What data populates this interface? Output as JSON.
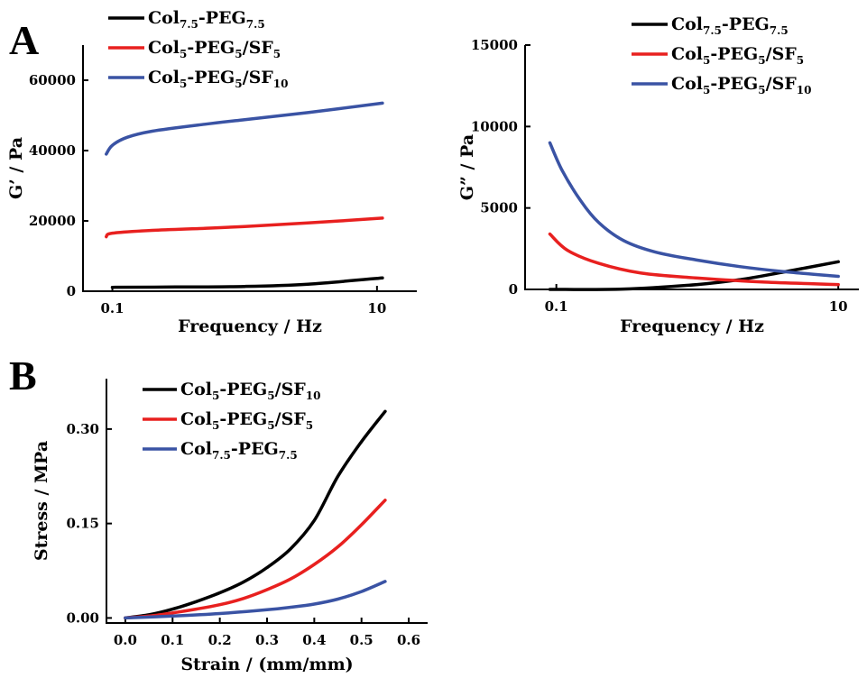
{
  "panel_letters": {
    "a": "A",
    "b": "B"
  },
  "colors": {
    "black": "#000000",
    "red": "#e8201f",
    "blue": "#3a53a4"
  },
  "chart_data": [
    {
      "type": "line",
      "panel": "A",
      "xlabel": "Frequency / Hz",
      "ylabel": "G’ / Pa",
      "xscale": "log",
      "xlim": [
        0.06,
        20
      ],
      "ylim": [
        0,
        70000
      ],
      "xticks": [
        0.1,
        10
      ],
      "xtick_labels": [
        "0.1",
        "10"
      ],
      "yticks": [
        0,
        20000,
        40000,
        60000
      ],
      "ytick_labels": [
        "0",
        "20000",
        "40000",
        "60000"
      ],
      "legend_position": "top-left",
      "series": [
        {
          "legend": [
            {
              "t": "Col"
            },
            {
              "t": "7.5",
              "sub": true
            },
            {
              "t": "-PEG"
            },
            {
              "t": "7.5",
              "sub": true
            }
          ],
          "color": "#000000",
          "points": [
            [
              0.1,
              1100
            ],
            [
              0.3,
              1200
            ],
            [
              1,
              1350
            ],
            [
              3,
              2000
            ],
            [
              11,
              3800
            ]
          ]
        },
        {
          "legend": [
            {
              "t": "Col"
            },
            {
              "t": "5",
              "sub": true
            },
            {
              "t": "-PEG"
            },
            {
              "t": "5",
              "sub": true
            },
            {
              "t": "/SF"
            },
            {
              "t": "5",
              "sub": true
            }
          ],
          "color": "#e8201f",
          "points": [
            [
              0.09,
              15500
            ],
            [
              0.1,
              16500
            ],
            [
              0.2,
              17300
            ],
            [
              0.5,
              17900
            ],
            [
              1,
              18400
            ],
            [
              3,
              19400
            ],
            [
              11,
              20800
            ]
          ]
        },
        {
          "legend": [
            {
              "t": "Col"
            },
            {
              "t": "5",
              "sub": true
            },
            {
              "t": "-PEG"
            },
            {
              "t": "5",
              "sub": true
            },
            {
              "t": "/SF"
            },
            {
              "t": "10",
              "sub": true
            }
          ],
          "color": "#3a53a4",
          "points": [
            [
              0.09,
              39000
            ],
            [
              0.1,
              41500
            ],
            [
              0.13,
              43800
            ],
            [
              0.2,
              45500
            ],
            [
              0.5,
              47500
            ],
            [
              1,
              48800
            ],
            [
              3,
              50800
            ],
            [
              11,
              53500
            ]
          ]
        }
      ]
    },
    {
      "type": "line",
      "panel": "A-right",
      "xlabel": "Frequency / Hz",
      "ylabel": "G” / Pa",
      "xscale": "log",
      "xlim": [
        0.06,
        14
      ],
      "ylim": [
        0,
        15000
      ],
      "xticks": [
        0.1,
        10
      ],
      "xtick_labels": [
        "0.1",
        "10"
      ],
      "yticks": [
        0,
        5000,
        10000,
        15000
      ],
      "ytick_labels": [
        "0",
        "5000",
        "10000",
        "15000"
      ],
      "legend_position": "top-right",
      "series": [
        {
          "legend": [
            {
              "t": "Col"
            },
            {
              "t": "7.5",
              "sub": true
            },
            {
              "t": "-PEG"
            },
            {
              "t": "7.5",
              "sub": true
            }
          ],
          "color": "#000000",
          "points": [
            [
              0.09,
              0
            ],
            [
              0.3,
              20
            ],
            [
              1,
              300
            ],
            [
              2,
              600
            ],
            [
              4,
              1050
            ],
            [
              10,
              1700
            ]
          ]
        },
        {
          "legend": [
            {
              "t": "Col"
            },
            {
              "t": "5",
              "sub": true
            },
            {
              "t": "-PEG"
            },
            {
              "t": "5",
              "sub": true
            },
            {
              "t": "/SF"
            },
            {
              "t": "5",
              "sub": true
            }
          ],
          "color": "#e8201f",
          "points": [
            [
              0.09,
              3400
            ],
            [
              0.12,
              2400
            ],
            [
              0.2,
              1600
            ],
            [
              0.4,
              1000
            ],
            [
              1,
              700
            ],
            [
              3,
              450
            ],
            [
              10,
              300
            ]
          ]
        },
        {
          "legend": [
            {
              "t": "Col"
            },
            {
              "t": "5",
              "sub": true
            },
            {
              "t": "-PEG"
            },
            {
              "t": "5",
              "sub": true
            },
            {
              "t": "/SF"
            },
            {
              "t": "10",
              "sub": true
            }
          ],
          "color": "#3a53a4",
          "points": [
            [
              0.09,
              9000
            ],
            [
              0.11,
              7300
            ],
            [
              0.15,
              5400
            ],
            [
              0.2,
              4100
            ],
            [
              0.3,
              3000
            ],
            [
              0.5,
              2300
            ],
            [
              1,
              1800
            ],
            [
              2,
              1400
            ],
            [
              4,
              1100
            ],
            [
              10,
              800
            ]
          ]
        }
      ]
    },
    {
      "type": "line",
      "panel": "B",
      "xlabel": "Strain / (mm/mm)",
      "ylabel": "Stress / MPa",
      "xscale": "linear",
      "xlim": [
        -0.04,
        0.64
      ],
      "ylim": [
        -0.008,
        0.38
      ],
      "xticks": [
        0.0,
        0.1,
        0.2,
        0.3,
        0.4,
        0.5,
        0.6
      ],
      "xtick_labels": [
        "0.0",
        "0.1",
        "0.2",
        "0.3",
        "0.4",
        "0.5",
        "0.6"
      ],
      "yticks": [
        0.0,
        0.15,
        0.3
      ],
      "ytick_labels": [
        "0.00",
        "0.15",
        "0.30"
      ],
      "legend_position": "top-left",
      "series": [
        {
          "legend": [
            {
              "t": "Col"
            },
            {
              "t": "5",
              "sub": true
            },
            {
              "t": "-PEG"
            },
            {
              "t": "5",
              "sub": true
            },
            {
              "t": "/SF"
            },
            {
              "t": "10",
              "sub": true
            }
          ],
          "color": "#000000",
          "points": [
            [
              0.0,
              0.0
            ],
            [
              0.05,
              0.005
            ],
            [
              0.1,
              0.014
            ],
            [
              0.15,
              0.026
            ],
            [
              0.2,
              0.04
            ],
            [
              0.25,
              0.057
            ],
            [
              0.3,
              0.08
            ],
            [
              0.35,
              0.11
            ],
            [
              0.4,
              0.155
            ],
            [
              0.45,
              0.225
            ],
            [
              0.5,
              0.28
            ],
            [
              0.55,
              0.328
            ]
          ]
        },
        {
          "legend": [
            {
              "t": "Col"
            },
            {
              "t": "5",
              "sub": true
            },
            {
              "t": "-PEG"
            },
            {
              "t": "5",
              "sub": true
            },
            {
              "t": "/SF"
            },
            {
              "t": "5",
              "sub": true
            }
          ],
          "color": "#e8201f",
          "points": [
            [
              0.0,
              0.0
            ],
            [
              0.05,
              0.003
            ],
            [
              0.1,
              0.008
            ],
            [
              0.15,
              0.014
            ],
            [
              0.2,
              0.021
            ],
            [
              0.25,
              0.031
            ],
            [
              0.3,
              0.045
            ],
            [
              0.35,
              0.062
            ],
            [
              0.4,
              0.085
            ],
            [
              0.45,
              0.113
            ],
            [
              0.5,
              0.148
            ],
            [
              0.55,
              0.187
            ]
          ]
        },
        {
          "legend": [
            {
              "t": "Col"
            },
            {
              "t": "7.5",
              "sub": true
            },
            {
              "t": "-PEG"
            },
            {
              "t": "7.5",
              "sub": true
            }
          ],
          "color": "#3a53a4",
          "points": [
            [
              0.0,
              0.0
            ],
            [
              0.1,
              0.003
            ],
            [
              0.2,
              0.007
            ],
            [
              0.3,
              0.013
            ],
            [
              0.35,
              0.017
            ],
            [
              0.4,
              0.022
            ],
            [
              0.45,
              0.03
            ],
            [
              0.5,
              0.042
            ],
            [
              0.55,
              0.058
            ]
          ]
        }
      ]
    }
  ]
}
